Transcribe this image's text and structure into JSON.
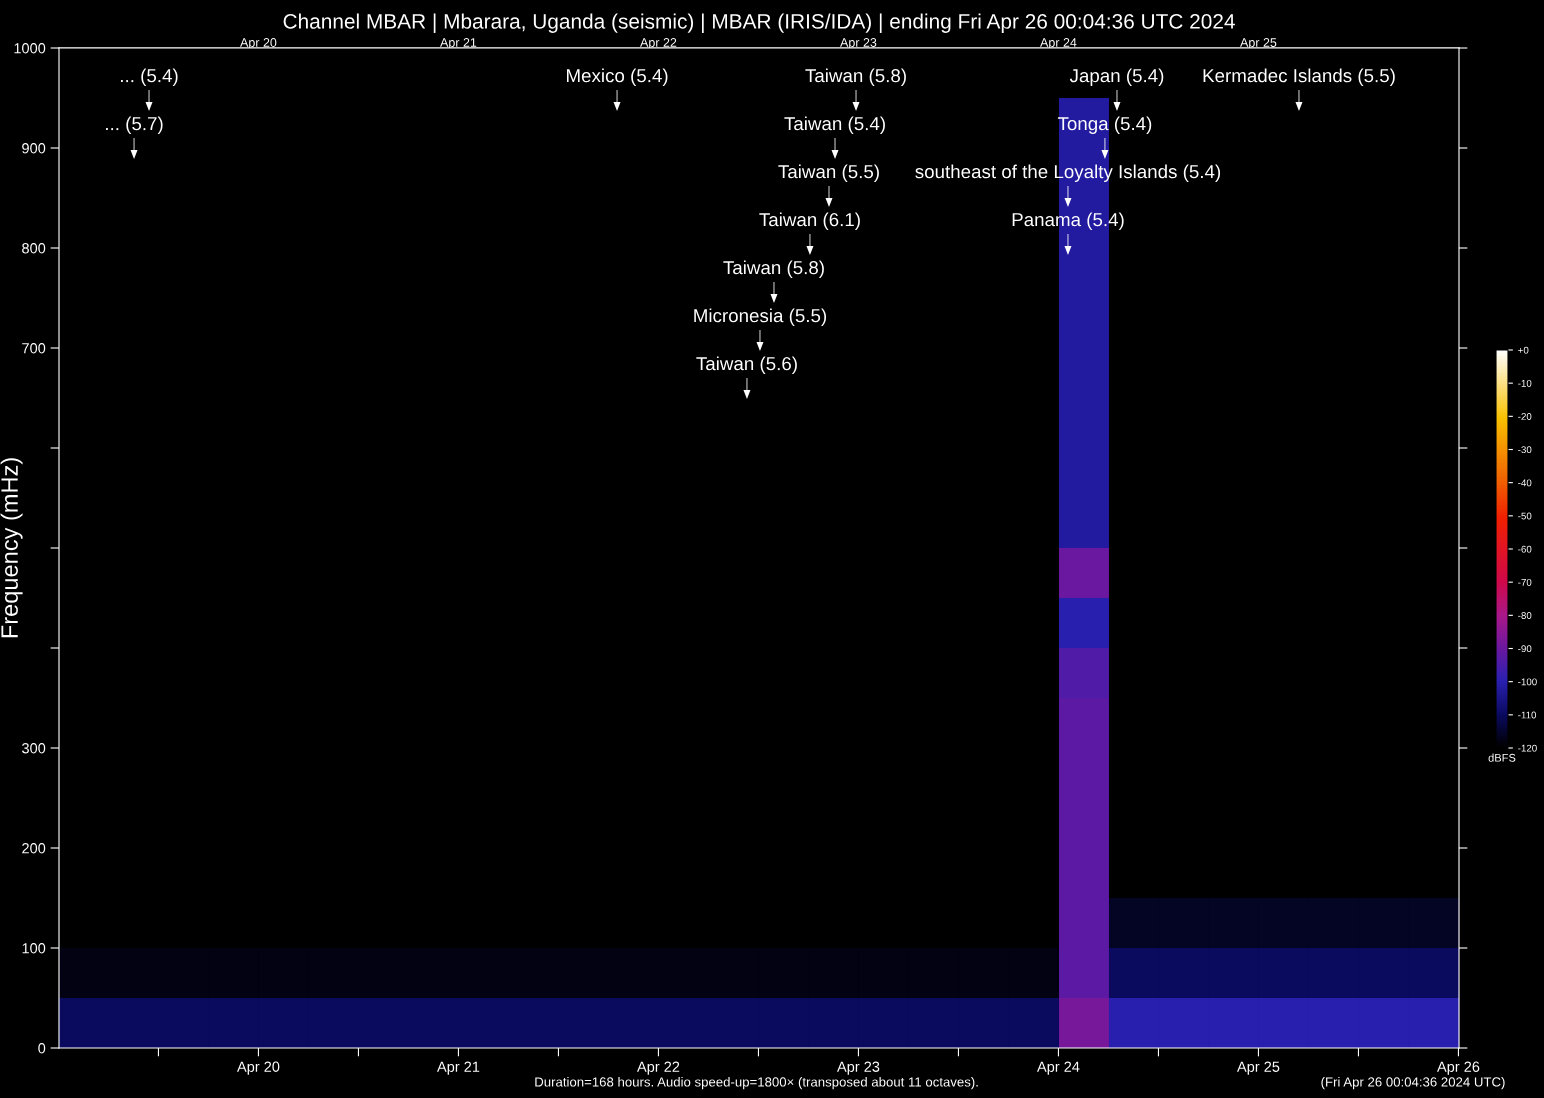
{
  "chart_data": {
    "type": "heatmap",
    "title": "Channel MBAR | Mbarara, Uganda (seismic) | MBAR (IRIS/IDA) | ending Fri Apr 26 00:04:36 UTC 2024",
    "ylabel": "Frequency (mHz)",
    "clabel": "dBFS",
    "cells": [
      [
        -120,
        -120,
        -120,
        -120,
        -120,
        -120,
        -120,
        -120,
        -120,
        -120,
        -120,
        -120,
        -120,
        -120,
        -120,
        -120,
        -120,
        -120,
        -120,
        -120,
        -120,
        -120,
        -120,
        -120,
        -120,
        -120,
        -120,
        -120
      ],
      [
        -120,
        -120,
        -120,
        -120,
        -120,
        -120,
        -120,
        -120,
        -120,
        -120,
        -120,
        -120,
        -120,
        -120,
        -120,
        -120,
        -120,
        -120,
        -120,
        -120,
        -102,
        -120,
        -120,
        -120,
        -120,
        -120,
        -120,
        -120
      ],
      [
        -120,
        -120,
        -120,
        -120,
        -120,
        -120,
        -120,
        -120,
        -120,
        -120,
        -120,
        -120,
        -120,
        -120,
        -120,
        -120,
        -120,
        -120,
        -120,
        -120,
        -102,
        -120,
        -120,
        -120,
        -120,
        -120,
        -120,
        -120
      ],
      [
        -120,
        -120,
        -120,
        -120,
        -120,
        -120,
        -120,
        -120,
        -120,
        -120,
        -120,
        -120,
        -120,
        -120,
        -120,
        -120,
        -120,
        -120,
        -120,
        -120,
        -102,
        -120,
        -120,
        -120,
        -120,
        -120,
        -120,
        -120
      ],
      [
        -120,
        -120,
        -120,
        -120,
        -120,
        -120,
        -120,
        -120,
        -120,
        -120,
        -120,
        -120,
        -120,
        -120,
        -120,
        -120,
        -120,
        -120,
        -120,
        -120,
        -102,
        -120,
        -120,
        -120,
        -120,
        -120,
        -120,
        -120
      ],
      [
        -120,
        -120,
        -120,
        -120,
        -120,
        -120,
        -120,
        -120,
        -120,
        -120,
        -120,
        -120,
        -120,
        -120,
        -120,
        -120,
        -120,
        -120,
        -120,
        -120,
        -102,
        -120,
        -120,
        -120,
        -120,
        -120,
        -120,
        -120
      ],
      [
        -120,
        -120,
        -120,
        -120,
        -120,
        -120,
        -120,
        -120,
        -120,
        -120,
        -120,
        -120,
        -120,
        -120,
        -120,
        -120,
        -120,
        -120,
        -120,
        -120,
        -102,
        -120,
        -120,
        -120,
        -120,
        -120,
        -120,
        -120
      ],
      [
        -120,
        -120,
        -120,
        -120,
        -120,
        -120,
        -120,
        -120,
        -120,
        -120,
        -120,
        -120,
        -120,
        -120,
        -120,
        -120,
        -120,
        -120,
        -120,
        -120,
        -102,
        -120,
        -120,
        -120,
        -120,
        -120,
        -120,
        -120
      ],
      [
        -120,
        -120,
        -120,
        -120,
        -120,
        -120,
        -120,
        -120,
        -120,
        -120,
        -120,
        -120,
        -120,
        -120,
        -120,
        -120,
        -120,
        -120,
        -120,
        -120,
        -102,
        -120,
        -120,
        -120,
        -120,
        -120,
        -120,
        -120
      ],
      [
        -120,
        -120,
        -120,
        -120,
        -120,
        -120,
        -120,
        -120,
        -120,
        -120,
        -120,
        -120,
        -120,
        -120,
        -120,
        -120,
        -120,
        -120,
        -120,
        -120,
        -102,
        -120,
        -120,
        -120,
        -120,
        -120,
        -120,
        -120
      ],
      [
        -120,
        -120,
        -120,
        -120,
        -120,
        -120,
        -120,
        -120,
        -120,
        -120,
        -120,
        -120,
        -120,
        -120,
        -120,
        -120,
        -120,
        -120,
        -120,
        -120,
        -90,
        -120,
        -120,
        -120,
        -120,
        -120,
        -120,
        -120
      ],
      [
        -120,
        -120,
        -120,
        -120,
        -120,
        -120,
        -120,
        -120,
        -120,
        -120,
        -120,
        -120,
        -120,
        -120,
        -120,
        -120,
        -120,
        -120,
        -120,
        -120,
        -100,
        -120,
        -120,
        -120,
        -120,
        -120,
        -120,
        -120
      ],
      [
        -120,
        -120,
        -120,
        -120,
        -120,
        -120,
        -120,
        -120,
        -120,
        -120,
        -120,
        -120,
        -120,
        -120,
        -120,
        -120,
        -120,
        -120,
        -120,
        -120,
        -94,
        -120,
        -120,
        -120,
        -120,
        -120,
        -120,
        -120
      ],
      [
        -120,
        -120,
        -120,
        -120,
        -120,
        -120,
        -120,
        -120,
        -120,
        -120,
        -120,
        -120,
        -120,
        -120,
        -120,
        -120,
        -120,
        -120,
        -120,
        -120,
        -92,
        -120,
        -120,
        -120,
        -120,
        -120,
        -120,
        -120
      ],
      [
        -120,
        -120,
        -120,
        -120,
        -120,
        -120,
        -120,
        -120,
        -120,
        -120,
        -120,
        -120,
        -120,
        -120,
        -120,
        -120,
        -120,
        -120,
        -120,
        -120,
        -92,
        -120,
        -120,
        -120,
        -120,
        -120,
        -120,
        -120
      ],
      [
        -120,
        -120,
        -120,
        -120,
        -120,
        -120,
        -120,
        -120,
        -120,
        -120,
        -120,
        -120,
        -120,
        -120,
        -120,
        -120,
        -120,
        -120,
        -120,
        -120,
        -92,
        -120,
        -120,
        -120,
        -120,
        -120,
        -120,
        -120
      ],
      [
        -120,
        -120,
        -120,
        -120,
        -120,
        -120,
        -120,
        -120,
        -120,
        -120,
        -120,
        -120,
        -120,
        -120,
        -120,
        -120,
        -120,
        -120,
        -120,
        -120,
        -92,
        -120,
        -120,
        -120,
        -120,
        -120,
        -120,
        -120
      ],
      [
        -120,
        -120,
        -120,
        -120,
        -120,
        -120,
        -120,
        -120,
        -120,
        -120,
        -120,
        -120,
        -120,
        -120,
        -120,
        -120,
        -120,
        -120,
        -120,
        -120,
        -92,
        -116,
        -116,
        -116,
        -116,
        -116,
        -116,
        -116
      ],
      [
        -118,
        -118,
        -118,
        -118,
        -118,
        -118,
        -118,
        -118,
        -118,
        -118,
        -118,
        -118,
        -118,
        -118,
        -118,
        -118,
        -118,
        -118,
        -118,
        -118,
        -92,
        -110,
        -110,
        -110,
        -110,
        -110,
        -110,
        -110
      ],
      [
        -110,
        -110,
        -110,
        -110,
        -110,
        -110,
        -110,
        -110,
        -110,
        -110,
        -110,
        -110,
        -110,
        -110,
        -110,
        -110,
        -110,
        -110,
        -110,
        -110,
        -88,
        -100,
        -100,
        -100,
        -100,
        -100,
        -100,
        -100
      ]
    ],
    "clim": [
      -120,
      0
    ],
    "cticks": [
      {
        "value": 0,
        "label": "+0"
      },
      {
        "value": -10,
        "label": "-10"
      },
      {
        "value": -20,
        "label": "-20"
      },
      {
        "value": -30,
        "label": "-30"
      },
      {
        "value": -40,
        "label": "-40"
      },
      {
        "value": -50,
        "label": "-50"
      },
      {
        "value": -60,
        "label": "-60"
      },
      {
        "value": -70,
        "label": "-70"
      },
      {
        "value": -80,
        "label": "-80"
      },
      {
        "value": -90,
        "label": "-90"
      },
      {
        "value": -100,
        "label": "-100"
      },
      {
        "value": -110,
        "label": "-110"
      },
      {
        "value": -120,
        "label": "-120"
      }
    ],
    "xlim": [
      "2024-04-19T00:04",
      "2024-04-26T00:04"
    ],
    "xticks": [
      {
        "value": "2024-04-19T12:00",
        "label": null
      },
      {
        "value": "2024-04-20",
        "label": "Apr 20"
      },
      {
        "value": "2024-04-20T12:00",
        "label": null
      },
      {
        "value": "2024-04-21",
        "label": "Apr 21"
      },
      {
        "value": "2024-04-21T12:00",
        "label": null
      },
      {
        "value": "2024-04-22",
        "label": "Apr 22"
      },
      {
        "value": "2024-04-22T12:00",
        "label": null
      },
      {
        "value": "2024-04-23",
        "label": "Apr 23"
      },
      {
        "value": "2024-04-23T12:00",
        "label": null
      },
      {
        "value": "2024-04-24",
        "label": "Apr 24"
      },
      {
        "value": "2024-04-24T12:00",
        "label": null
      },
      {
        "value": "2024-04-25",
        "label": "Apr 25"
      },
      {
        "value": "2024-04-25T12:00",
        "label": null
      },
      {
        "value": "2024-04-26",
        "label": "Apr 26"
      }
    ],
    "x2lim": [
      "2024-04-19T00:04",
      "2024-04-26T00:04"
    ],
    "x2ticks": [
      {
        "value": "2024-04-19T12:00",
        "label": null
      },
      {
        "value": "2024-04-20",
        "label": "Apr 20"
      },
      {
        "value": "2024-04-20T12:00",
        "label": null
      },
      {
        "value": "2024-04-21",
        "label": "Apr 21"
      },
      {
        "value": "2024-04-21T12:00",
        "label": null
      },
      {
        "value": "2024-04-22",
        "label": "Apr 22"
      },
      {
        "value": "2024-04-22T12:00",
        "label": null
      },
      {
        "value": "2024-04-23",
        "label": "Apr 23"
      },
      {
        "value": "2024-04-23T12:00",
        "label": null
      },
      {
        "value": "2024-04-24",
        "label": "Apr 24"
      },
      {
        "value": "2024-04-24T12:00",
        "label": null
      },
      {
        "value": "2024-04-25",
        "label": "Apr 25"
      },
      {
        "value": "2024-04-25T12:00",
        "label": null
      },
      {
        "value": "2024-04-26",
        "label": null
      }
    ],
    "ylim": [
      0,
      1000
    ],
    "yticks": [
      0,
      100,
      200,
      300,
      {
        "value": 400,
        "label": null
      },
      {
        "value": 500,
        "label": null
      },
      {
        "value": 600,
        "label": null
      },
      700,
      800,
      900,
      1000
    ],
    "grid": false,
    "annotations": [
      "... (5.4)",
      "Mexico (5.4)",
      "Taiwan (5.8)",
      "Kermadec Islands (5.5)",
      "... (5.7)",
      "Taiwan (5.4)",
      "Japan (5.4)",
      "Taiwan (5.5)",
      "Tonga (5.4)",
      "southeast of the Loyalty Islands (5.4)",
      "Taiwan (6.1)",
      "Panama (5.4)",
      "Taiwan (5.8)",
      "Micronesia (5.5)",
      "Taiwan (5.6)",
      "Duration=168 hours. Audio speed-up=1800× (transposed about 11 octaves).",
      "(Fri Apr 26 00:04:36 2024 UTC)"
    ]
  }
}
